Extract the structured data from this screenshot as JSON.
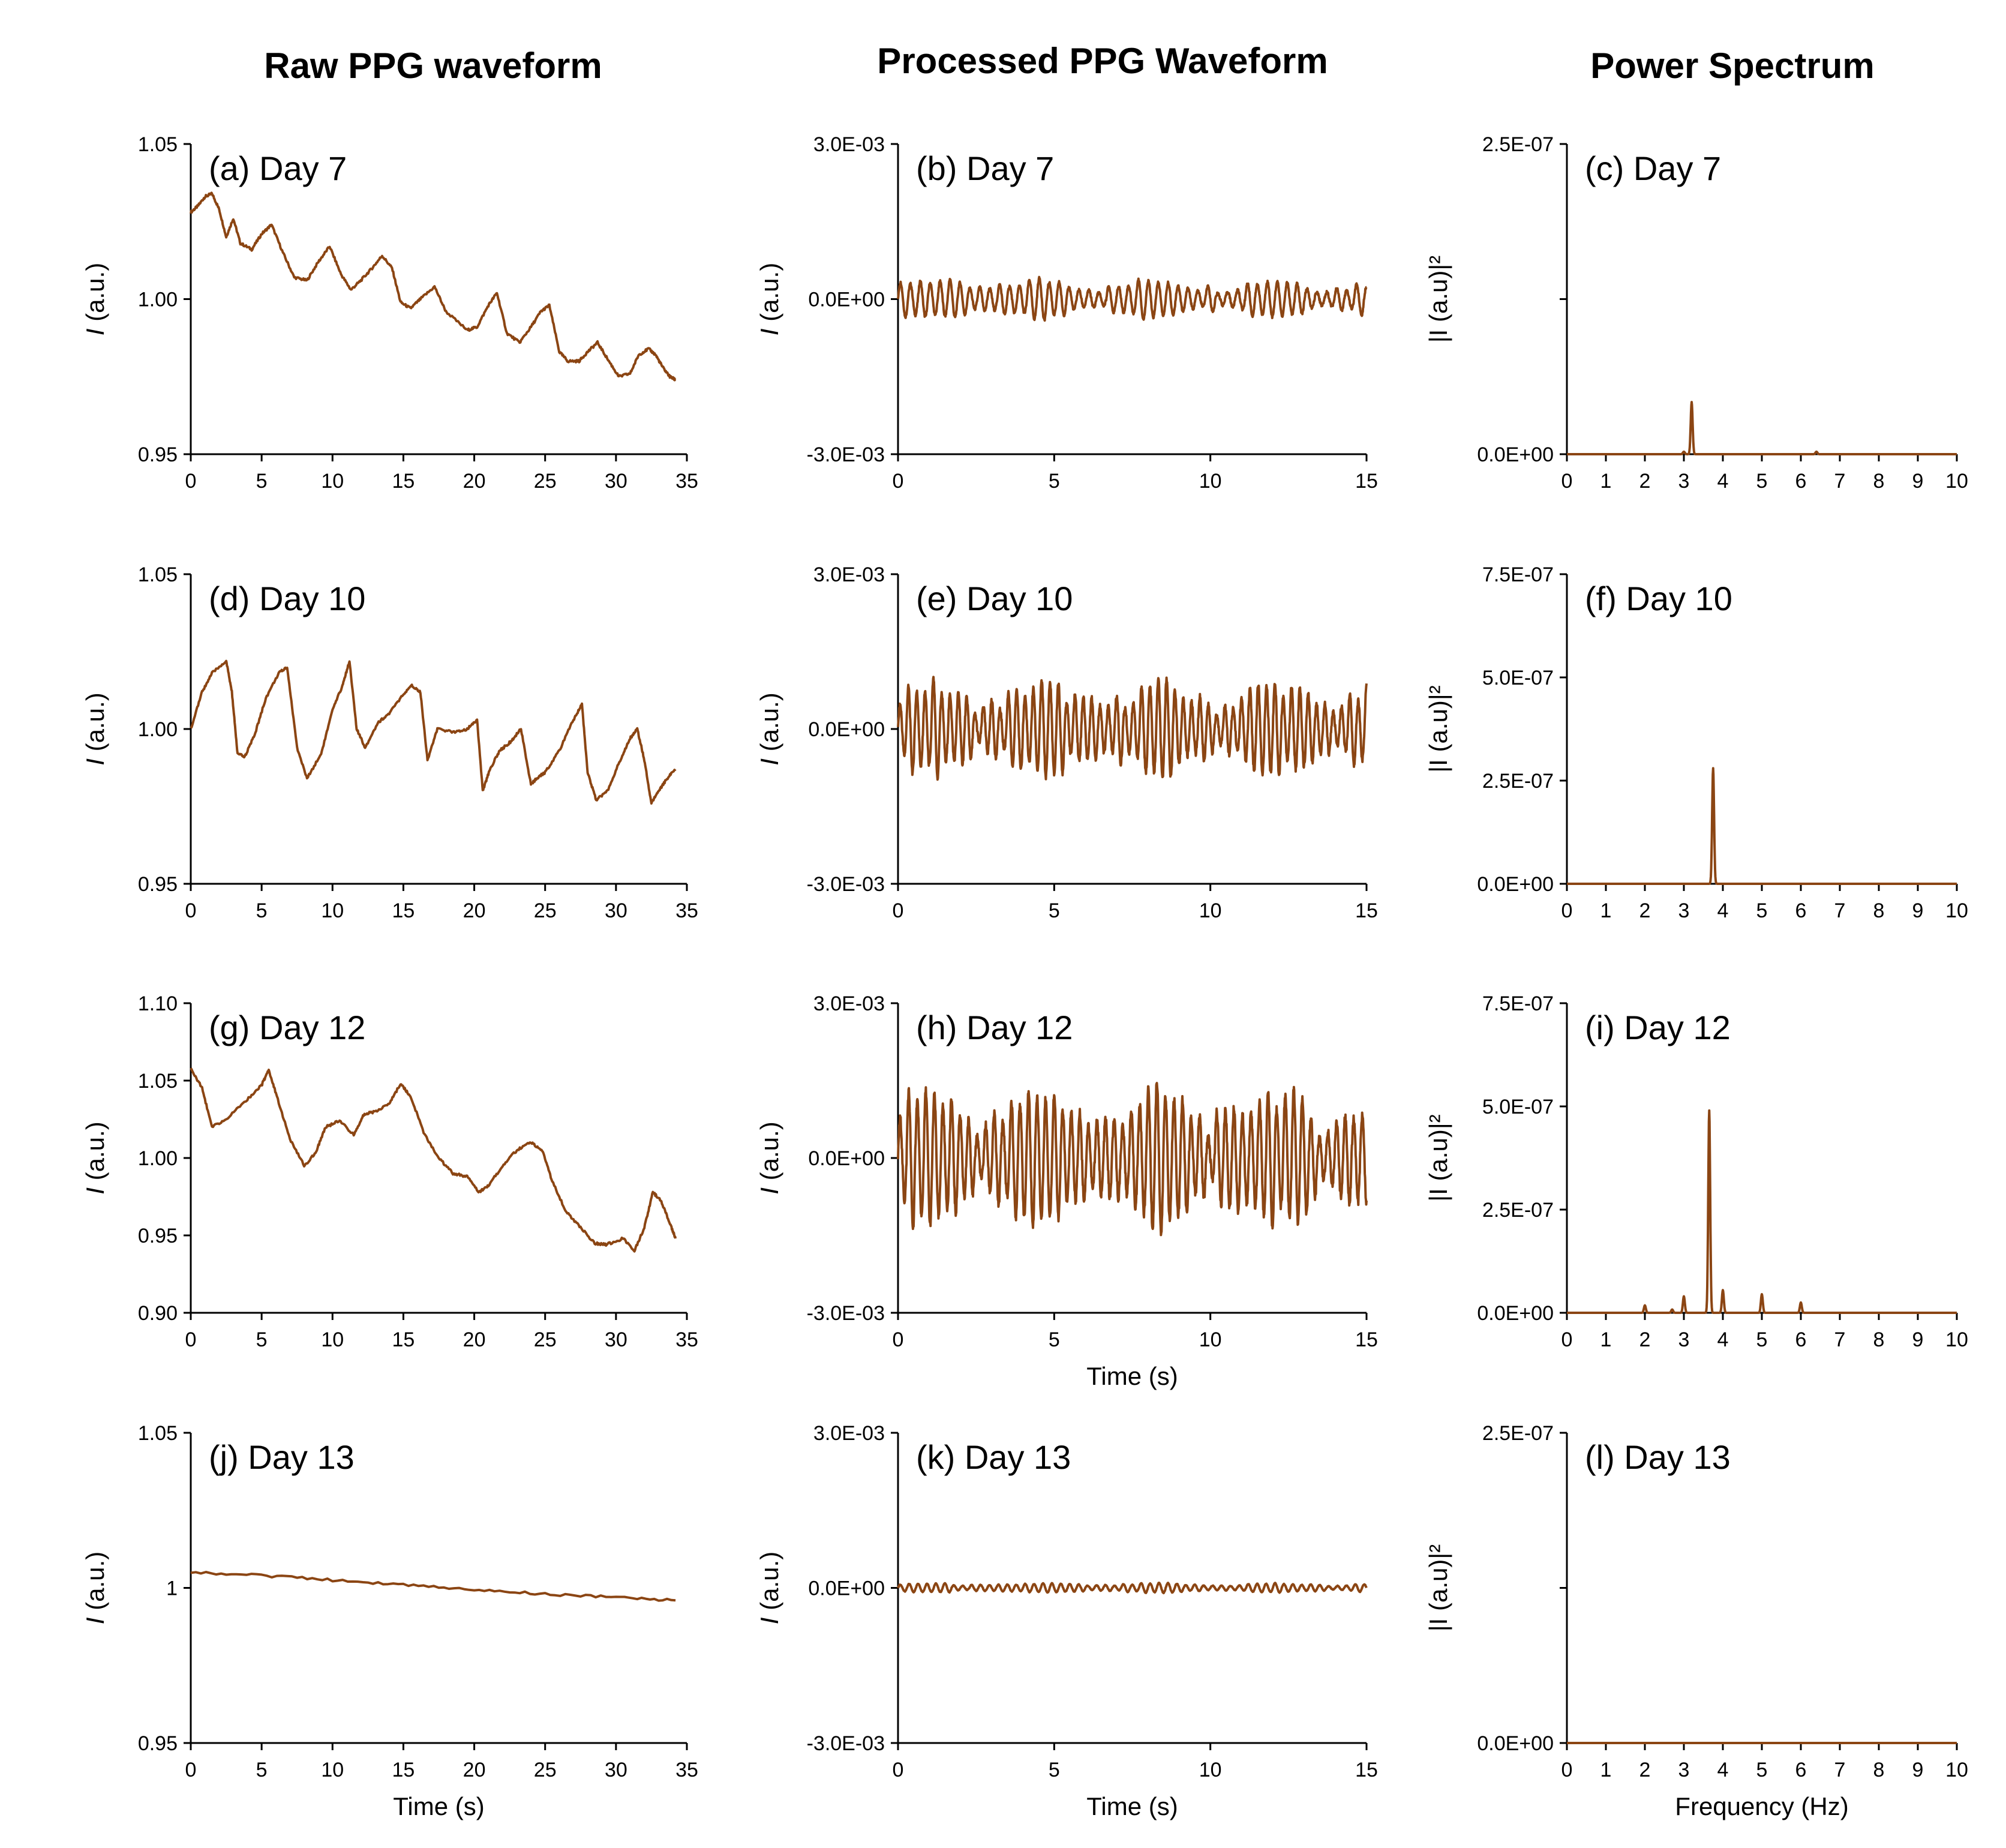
{
  "column_titles": [
    "Raw PPG waveform",
    "Processed PPG Waveform",
    "Power Spectrum"
  ],
  "series_color": "#8B4513",
  "chart_data": [
    {
      "id": "a",
      "type": "line",
      "panel_label": "(a) Day 7",
      "ylabel": "I (a.u.)",
      "xlabel": "",
      "ylim": [
        0.95,
        1.05
      ],
      "yticks": [
        "0.95",
        "1.00",
        "1.05"
      ],
      "xlim": [
        0,
        35
      ],
      "xticks": [
        "0",
        "5",
        "10",
        "15",
        "20",
        "25",
        "30",
        "35"
      ],
      "series": [
        {
          "x": [
            0,
            0.5,
            1,
            1.5,
            2,
            2.5,
            3,
            3.5,
            4.3,
            5,
            5.7,
            6.5,
            7.3,
            8.2,
            9,
            9.8,
            10.6,
            11.3,
            12,
            12.8,
            13.5,
            14.2,
            14.8,
            15.5,
            16.2,
            17.2,
            18,
            19.5,
            20.2,
            21,
            21.6,
            22.3,
            23.2,
            24,
            24.7,
            25.3,
            26,
            26.6,
            27.4,
            28,
            28.7,
            29.5,
            30.2,
            31,
            31.6,
            32.3,
            32.8,
            33.3,
            33.8,
            34.2
          ],
          "y": [
            1.028,
            1.03,
            1.033,
            1.034,
            1.029,
            1.02,
            1.026,
            1.018,
            1.016,
            1.021,
            1.024,
            1.015,
            1.007,
            1.006,
            1.012,
            1.017,
            1.008,
            1.003,
            1.006,
            1.01,
            1.014,
            1.01,
            0.999,
            0.997,
            1.0,
            1.004,
            0.996,
            0.99,
            0.991,
            0.998,
            1.002,
            0.989,
            0.986,
            0.991,
            0.996,
            0.998,
            0.983,
            0.98,
            0.98,
            0.983,
            0.986,
            0.98,
            0.975,
            0.976,
            0.982,
            0.984,
            0.982,
            0.978,
            0.975,
            0.974
          ]
        }
      ]
    },
    {
      "id": "b",
      "type": "line",
      "panel_label": "(b) Day 7",
      "ylabel": "I (a.u.)",
      "xlabel": "",
      "ylim": [
        -0.003,
        0.003
      ],
      "yticks": [
        "-3.0E-03",
        "0.0E+00",
        "3.0E-03"
      ],
      "xlim": [
        0,
        15
      ],
      "xticks": [
        "0",
        "5",
        "10",
        "15"
      ],
      "series": [
        {
          "freq": 3.15,
          "amplitude": 0.00035,
          "x_end": 15
        }
      ]
    },
    {
      "id": "c",
      "type": "line",
      "panel_label": "(c) Day 7",
      "ylabel": "|I (a.u)|²",
      "xlabel": "",
      "ylim": [
        0,
        2.5e-07
      ],
      "yticks": [
        "0.0E+00",
        "",
        "2.5E-07"
      ],
      "xlim": [
        0,
        10
      ],
      "xticks": [
        "0",
        "1",
        "2",
        "3",
        "4",
        "5",
        "6",
        "7",
        "8",
        "9",
        "10"
      ],
      "series": [
        {
          "peaks": [
            {
              "x": 3.2,
              "y": 4.2e-08
            },
            {
              "x": 3.0,
              "y": 2e-09
            },
            {
              "x": 6.4,
              "y": 2e-09
            }
          ]
        }
      ]
    },
    {
      "id": "d",
      "type": "line",
      "panel_label": "(d) Day 10",
      "ylabel": "I (a.u.)",
      "xlabel": "",
      "ylim": [
        0.95,
        1.05
      ],
      "yticks": [
        "0.95",
        "1.00",
        "1.05"
      ],
      "xlim": [
        0,
        35
      ],
      "xticks": [
        "0",
        "5",
        "10",
        "15",
        "20",
        "25",
        "30",
        "35"
      ],
      "series": [
        {
          "x": [
            0,
            0.8,
            1.5,
            2.5,
            2.9,
            3.3,
            3.8,
            4.5,
            5.3,
            6.2,
            6.8,
            7.5,
            8.2,
            9.2,
            10,
            10.7,
            11.2,
            11.7,
            12.3,
            13.2,
            14,
            14.8,
            15.6,
            16.2,
            16.7,
            17.4,
            18.5,
            19.5,
            20.2,
            20.6,
            21.1,
            21.8,
            22.6,
            23.3,
            24,
            24.4,
            25,
            26,
            27,
            27.6,
            28,
            28.6,
            29.4,
            30.3,
            31,
            31.5,
            32,
            32.5,
            33,
            33.6,
            34.2
          ],
          "y": [
            1.0,
            1.012,
            1.018,
            1.022,
            1.012,
            0.992,
            0.991,
            0.998,
            1.01,
            1.018,
            1.02,
            0.994,
            0.984,
            0.992,
            1.006,
            1.014,
            1.022,
            1.0,
            0.994,
            1.002,
            1.005,
            1.01,
            1.014,
            1.012,
            0.99,
            1.0,
            0.999,
            1.0,
            1.003,
            0.98,
            0.987,
            0.993,
            0.996,
            1.0,
            0.982,
            0.984,
            0.986,
            0.993,
            1.003,
            1.008,
            0.986,
            0.977,
            0.98,
            0.99,
            0.997,
            1.0,
            0.99,
            0.976,
            0.98,
            0.984,
            0.987
          ]
        }
      ]
    },
    {
      "id": "e",
      "type": "line",
      "panel_label": "(e) Day 10",
      "ylabel": "I (a.u.)",
      "xlabel": "",
      "ylim": [
        -0.003,
        0.003
      ],
      "yticks": [
        "-3.0E-03",
        "0.0E+00",
        "3.0E-03"
      ],
      "xlim": [
        0,
        15
      ],
      "xticks": [
        "0",
        "5",
        "10",
        "15"
      ],
      "series": [
        {
          "freq": 3.75,
          "amplitude": 0.0008,
          "x_end": 15
        }
      ]
    },
    {
      "id": "f",
      "type": "line",
      "panel_label": "(f) Day 10",
      "ylabel": "|I (a.u)|²",
      "xlabel": "",
      "ylim": [
        0,
        7.5e-07
      ],
      "yticks": [
        "0.0E+00",
        "2.5E-07",
        "5.0E-07",
        "7.5E-07"
      ],
      "xlim": [
        0,
        10
      ],
      "xticks": [
        "0",
        "1",
        "2",
        "3",
        "4",
        "5",
        "6",
        "7",
        "8",
        "9",
        "10"
      ],
      "series": [
        {
          "peaks": [
            {
              "x": 3.75,
              "y": 2.8e-07
            }
          ]
        }
      ]
    },
    {
      "id": "g",
      "type": "line",
      "panel_label": "(g) Day 12",
      "ylabel": "I (a.u.)",
      "xlabel": "",
      "ylim": [
        0.9,
        1.1
      ],
      "yticks": [
        "0.90",
        "0.95",
        "1.00",
        "1.05",
        "1.10"
      ],
      "xlim": [
        0,
        35
      ],
      "xticks": [
        "0",
        "5",
        "10",
        "15",
        "20",
        "25",
        "30",
        "35"
      ],
      "series": [
        {
          "x": [
            0,
            0.8,
            1.5,
            2.5,
            4,
            5,
            5.5,
            6,
            7,
            8,
            8.8,
            9.5,
            10.5,
            11.5,
            12.2,
            13,
            14,
            14.8,
            15.5,
            16.5,
            17.5,
            18.5,
            19.5,
            20.3,
            21,
            22,
            23,
            24,
            24.8,
            25.5,
            26.5,
            27.5,
            28.5,
            29.3,
            30.5,
            31.3,
            32,
            32.6,
            33.2,
            33.8,
            34.2
          ],
          "y": [
            1.058,
            1.045,
            1.02,
            1.025,
            1.038,
            1.047,
            1.057,
            1.042,
            1.012,
            0.995,
            1.003,
            1.02,
            1.024,
            1.015,
            1.028,
            1.03,
            1.035,
            1.048,
            1.04,
            1.015,
            1.0,
            0.99,
            0.988,
            0.978,
            0.982,
            0.995,
            1.005,
            1.01,
            1.005,
            0.985,
            0.965,
            0.955,
            0.945,
            0.944,
            0.948,
            0.94,
            0.955,
            0.978,
            0.972,
            0.958,
            0.948
          ]
        }
      ]
    },
    {
      "id": "h",
      "type": "line",
      "panel_label": "(h) Day 12",
      "ylabel": "I (a.u.)",
      "xlabel": "Time (s)",
      "ylim": [
        -0.003,
        0.003
      ],
      "yticks": [
        "-3.0E-03",
        "0.0E+00",
        "3.0E-03"
      ],
      "xlim": [
        0,
        15
      ],
      "xticks": [
        "0",
        "5",
        "10",
        "15"
      ],
      "series": [
        {
          "freq": 3.65,
          "amplitude": 0.0012,
          "x_end": 15
        }
      ]
    },
    {
      "id": "i",
      "type": "line",
      "panel_label": "(i) Day 12",
      "ylabel": "|I (a.u)|²",
      "xlabel": "",
      "ylim": [
        0,
        7.5e-07
      ],
      "yticks": [
        "0.0E+00",
        "2.5E-07",
        "5.0E-07",
        "7.5E-07"
      ],
      "xlim": [
        0,
        10
      ],
      "xticks": [
        "0",
        "1",
        "2",
        "3",
        "4",
        "5",
        "6",
        "7",
        "8",
        "9",
        "10"
      ],
      "series": [
        {
          "peaks": [
            {
              "x": 3.65,
              "y": 4.9e-07
            },
            {
              "x": 3.0,
              "y": 4e-08
            },
            {
              "x": 4.0,
              "y": 5.5e-08
            },
            {
              "x": 5.0,
              "y": 4.5e-08
            },
            {
              "x": 6.0,
              "y": 2.5e-08
            },
            {
              "x": 2.0,
              "y": 1.8e-08
            },
            {
              "x": 2.7,
              "y": 8e-09
            }
          ]
        }
      ]
    },
    {
      "id": "j",
      "type": "line",
      "panel_label": "(j) Day 13",
      "ylabel": "I (a.u.)",
      "xlabel": "Time (s)",
      "ylim": [
        0.95,
        1.05
      ],
      "yticks": [
        "0.95",
        "1",
        "1.05"
      ],
      "xlim": [
        0,
        35
      ],
      "xticks": [
        "0",
        "5",
        "10",
        "15",
        "20",
        "25",
        "30",
        "35"
      ],
      "series": [
        {
          "x": [
            0,
            5,
            10,
            15,
            20,
            25,
            30,
            34.2
          ],
          "y": [
            1.005,
            1.004,
            1.0025,
            1.001,
            0.9995,
            0.998,
            0.997,
            0.996
          ]
        }
      ]
    },
    {
      "id": "k",
      "type": "line",
      "panel_label": "(k) Day 13",
      "ylabel": "I (a.u.)",
      "xlabel": "Time (s)",
      "ylim": [
        -0.003,
        0.003
      ],
      "yticks": [
        "-3.0E-03",
        "0.0E+00",
        "3.0E-03"
      ],
      "xlim": [
        0,
        15
      ],
      "xticks": [
        "0",
        "5",
        "10",
        "15"
      ],
      "series": [
        {
          "freq": 3.5,
          "amplitude": 8e-05,
          "x_end": 15
        }
      ]
    },
    {
      "id": "l",
      "type": "line",
      "panel_label": "(l) Day 13",
      "ylabel": "|I (a.u)|²",
      "xlabel": "Frequency (Hz)",
      "ylim": [
        0,
        2.5e-07
      ],
      "yticks": [
        "0.0E+00",
        "",
        "2.5E-07"
      ],
      "xlim": [
        0,
        10
      ],
      "xticks": [
        "0",
        "1",
        "2",
        "3",
        "4",
        "5",
        "6",
        "7",
        "8",
        "9",
        "10"
      ],
      "series": [
        {
          "peaks": []
        }
      ]
    }
  ]
}
